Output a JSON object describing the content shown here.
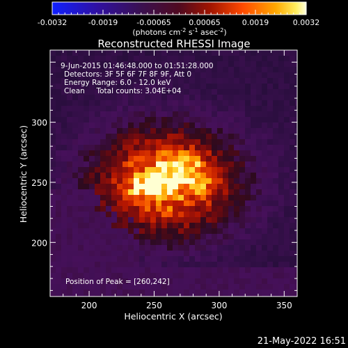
{
  "colorbar": {
    "ticks": [
      "-0.0032",
      "-0.0019",
      "-0.00065",
      "0.00065",
      "0.0019",
      "0.0032"
    ],
    "units": "(photons cm",
    "units_exp1": "-2",
    "units_mid": " s",
    "units_exp2": "-1",
    "units_end": " asec",
    "units_exp3": "-2",
    "units_close": ")"
  },
  "title": "Reconstructed RHESSI Image",
  "info": {
    "time_range": "9-Jun-2015 01:46:48.000 to 01:51:28.000",
    "detectors": "Detectors: 3F 5F 6F 7F 8F 9F, Att 0",
    "energy": "Energy Range: 6.0 - 12.0 keV",
    "clean": "Clean     Total counts: 3.04E+04"
  },
  "peak_text": "Position of Peak = [260,242]",
  "axes": {
    "xlabel": "Heliocentric X (arcsec)",
    "ylabel": "Heliocentric Y (arcsec)",
    "x_ticks": [
      "200",
      "250",
      "300",
      "350"
    ],
    "y_ticks": [
      "200",
      "250",
      "300"
    ],
    "x_range": [
      170,
      360
    ],
    "y_range": [
      155,
      360
    ]
  },
  "timestamp": "21-May-2022 16:51",
  "colors": {
    "background": "#000000",
    "colormap": [
      "#1a22ff",
      "#3a0a6a",
      "#2a1040",
      "#6a0a1a",
      "#b81a00",
      "#ff5a00",
      "#ffb000",
      "#ffff80",
      "#ffffff"
    ]
  }
}
